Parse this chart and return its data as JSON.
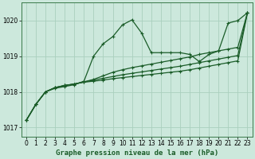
{
  "title": "Graphe pression niveau de la mer (hPa)",
  "bg_color": "#cce8dc",
  "grid_color": "#aacfbe",
  "line_color": "#1a5c28",
  "xlim": [
    -0.5,
    23.5
  ],
  "ylim": [
    1016.75,
    1020.5
  ],
  "yticks": [
    1017,
    1018,
    1019,
    1020
  ],
  "xticks": [
    0,
    1,
    2,
    3,
    4,
    5,
    6,
    7,
    8,
    9,
    10,
    11,
    12,
    13,
    14,
    15,
    16,
    17,
    18,
    19,
    20,
    21,
    22,
    23
  ],
  "series": [
    [
      1017.2,
      1017.65,
      1018.0,
      1018.1,
      1018.15,
      1018.2,
      1018.3,
      1019.0,
      1019.35,
      1019.55,
      1019.88,
      1020.02,
      1019.65,
      1019.1,
      1019.1,
      1019.1,
      1019.1,
      1019.05,
      1018.85,
      1019.05,
      1019.15,
      1019.93,
      1020.0,
      1020.22
    ],
    [
      1017.2,
      1017.65,
      1018.0,
      1018.12,
      1018.18,
      1018.22,
      1018.28,
      1018.35,
      1018.45,
      1018.55,
      1018.62,
      1018.68,
      1018.73,
      1018.78,
      1018.83,
      1018.88,
      1018.93,
      1018.98,
      1019.05,
      1019.1,
      1019.15,
      1019.2,
      1019.25,
      1020.22
    ],
    [
      1017.2,
      1017.65,
      1018.0,
      1018.12,
      1018.18,
      1018.22,
      1018.28,
      1018.33,
      1018.38,
      1018.43,
      1018.48,
      1018.52,
      1018.56,
      1018.6,
      1018.64,
      1018.68,
      1018.72,
      1018.77,
      1018.82,
      1018.87,
      1018.92,
      1018.97,
      1019.02,
      1020.22
    ],
    [
      1017.2,
      1017.65,
      1018.0,
      1018.12,
      1018.18,
      1018.22,
      1018.27,
      1018.3,
      1018.33,
      1018.37,
      1018.4,
      1018.43,
      1018.46,
      1018.49,
      1018.52,
      1018.55,
      1018.58,
      1018.62,
      1018.67,
      1018.72,
      1018.77,
      1018.82,
      1018.87,
      1020.22
    ]
  ],
  "title_fontsize": 6.5,
  "tick_fontsize": 5.5
}
